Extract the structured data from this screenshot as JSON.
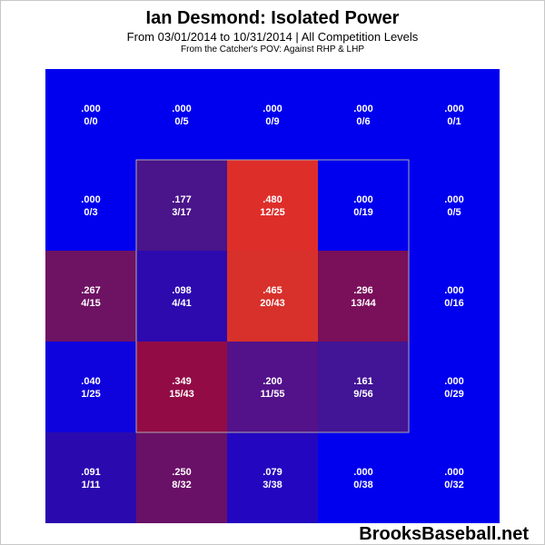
{
  "title": "Ian Desmond: Isolated Power",
  "subtitle": "From 03/01/2014 to 10/31/2014 | All Competition Levels",
  "subtitle2": "From the Catcher's POV:  Against RHP & LHP",
  "watermark": "BrooksBaseball.net",
  "chart_data": {
    "type": "heatmap",
    "title": "Ian Desmond: Isolated Power",
    "rows": 5,
    "cols": 5,
    "strike_zone": {
      "rows": [
        1,
        3
      ],
      "cols": [
        1,
        3
      ]
    },
    "colors": {
      "low": "#0000ee",
      "high": "#e0332e",
      "strike_zone_border": "#aaaaaa"
    },
    "cells": [
      [
        {
          "value": ".000",
          "ratio": "0/0",
          "iso": 0.0,
          "color": "#0000ee"
        },
        {
          "value": ".000",
          "ratio": "0/5",
          "iso": 0.0,
          "color": "#0000ee"
        },
        {
          "value": ".000",
          "ratio": "0/9",
          "iso": 0.0,
          "color": "#0000ee"
        },
        {
          "value": ".000",
          "ratio": "0/6",
          "iso": 0.0,
          "color": "#0000ee"
        },
        {
          "value": ".000",
          "ratio": "0/1",
          "iso": 0.0,
          "color": "#0000ee"
        }
      ],
      [
        {
          "value": ".000",
          "ratio": "0/3",
          "iso": 0.0,
          "color": "#0000ee"
        },
        {
          "value": ".177",
          "ratio": "3/17",
          "iso": 0.177,
          "color": "#4a148a"
        },
        {
          "value": ".480",
          "ratio": "12/25",
          "iso": 0.48,
          "color": "#de2e2a"
        },
        {
          "value": ".000",
          "ratio": "0/19",
          "iso": 0.0,
          "color": "#0000ee"
        },
        {
          "value": ".000",
          "ratio": "0/5",
          "iso": 0.0,
          "color": "#0000ee"
        }
      ],
      [
        {
          "value": ".267",
          "ratio": "4/15",
          "iso": 0.267,
          "color": "#6e1263"
        },
        {
          "value": ".098",
          "ratio": "4/41",
          "iso": 0.098,
          "color": "#2c0aae"
        },
        {
          "value": ".465",
          "ratio": "20/43",
          "iso": 0.465,
          "color": "#d8302a"
        },
        {
          "value": ".296",
          "ratio": "13/44",
          "iso": 0.296,
          "color": "#7a0f5a"
        },
        {
          "value": ".000",
          "ratio": "0/16",
          "iso": 0.0,
          "color": "#0000ee"
        }
      ],
      [
        {
          "value": ".040",
          "ratio": "1/25",
          "iso": 0.04,
          "color": "#0f03dd"
        },
        {
          "value": ".349",
          "ratio": "15/43",
          "iso": 0.349,
          "color": "#930b45"
        },
        {
          "value": ".200",
          "ratio": "11/55",
          "iso": 0.2,
          "color": "#531289"
        },
        {
          "value": ".161",
          "ratio": "9/56",
          "iso": 0.161,
          "color": "#421496"
        },
        {
          "value": ".000",
          "ratio": "0/29",
          "iso": 0.0,
          "color": "#0000ee"
        }
      ],
      [
        {
          "value": ".091",
          "ratio": "1/11",
          "iso": 0.091,
          "color": "#2a0aae"
        },
        {
          "value": ".250",
          "ratio": "8/32",
          "iso": 0.25,
          "color": "#691067"
        },
        {
          "value": ".079",
          "ratio": "3/38",
          "iso": 0.079,
          "color": "#2307c0"
        },
        {
          "value": ".000",
          "ratio": "0/38",
          "iso": 0.0,
          "color": "#0000ee"
        },
        {
          "value": ".000",
          "ratio": "0/32",
          "iso": 0.0,
          "color": "#0000ee"
        }
      ]
    ]
  }
}
